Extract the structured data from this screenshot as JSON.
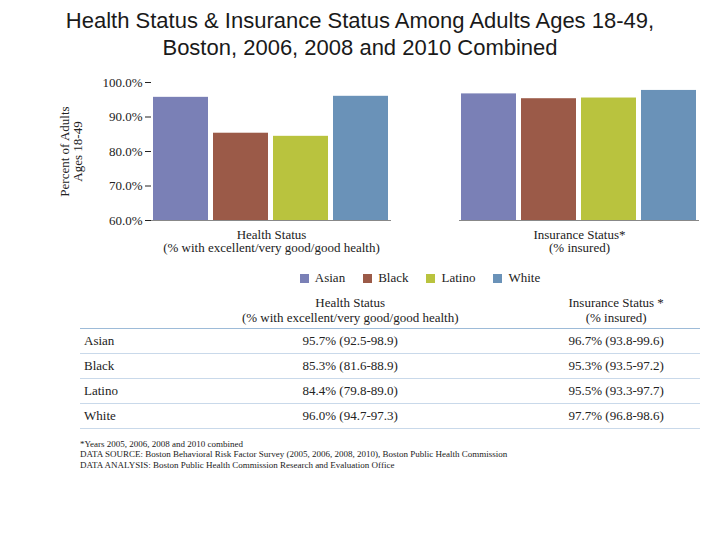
{
  "chart_data": {
    "type": "bar",
    "title": "Health Status & Insurance Status Among Adults Ages 18-49, Boston, 2006, 2008 and 2010 Combined",
    "y_label": "Percent of Adults\nAges 18-49",
    "categories": [
      "Health Status\n(% with excellent/very good/good health)",
      "Insurance Status*\n(% insured)"
    ],
    "series": [
      {
        "name": "Asian",
        "color": "#7a80b6",
        "values": [
          95.7,
          96.7
        ]
      },
      {
        "name": "Black",
        "color": "#9b5a48",
        "values": [
          85.3,
          95.3
        ]
      },
      {
        "name": "Latino",
        "color": "#b9c33e",
        "values": [
          84.4,
          95.5
        ]
      },
      {
        "name": "White",
        "color": "#6a92b8",
        "values": [
          96.0,
          97.7
        ]
      }
    ],
    "ylim": [
      60,
      100
    ],
    "yticks": [
      {
        "value": 60,
        "label": "60.0%"
      },
      {
        "value": 70,
        "label": "70.0%"
      },
      {
        "value": 80,
        "label": "80.0%"
      },
      {
        "value": 90,
        "label": "90.0%"
      },
      {
        "value": 100,
        "label": "100.0%"
      }
    ],
    "grid": false,
    "legend": "bottom"
  },
  "table": {
    "header": [
      "",
      "Health Status\n(% with excellent/very good/good health)",
      "Insurance Status *\n(% insured)"
    ],
    "rows": [
      [
        "Asian",
        "95.7% (92.5-98.9)",
        "96.7% (93.8-99.6)"
      ],
      [
        "Black",
        "85.3% (81.6-88.9)",
        "95.3% (93.5-97.2)"
      ],
      [
        "Latino",
        "84.4% (79.8-89.0)",
        "95.5% (93.3-97.7)"
      ],
      [
        "White",
        "96.0% (94.7-97.3)",
        "97.7% (96.8-98.6)"
      ]
    ]
  },
  "footnotes": [
    "*Years 2005, 2006, 2008 and 2010 combined",
    "DATA SOURCE: Boston Behavioral Risk Factor Survey (2005, 2006, 2008, 2010), Boston Public Health Commission",
    "DATA ANALYSIS: Boston Public Health Commission Research and Evaluation Office"
  ]
}
